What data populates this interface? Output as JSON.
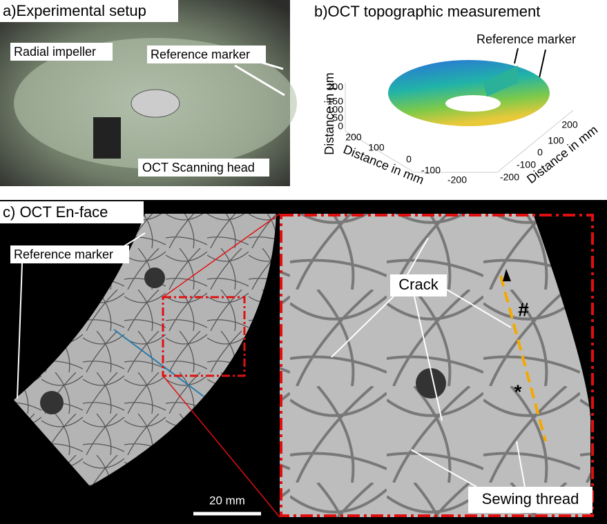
{
  "panel_a": {
    "title": "a)Experimental setup",
    "labels": [
      "Radial impeller",
      "Reference marker",
      "OCT Scanning head"
    ]
  },
  "panel_b": {
    "title": "b)OCT topographic measurement",
    "annotation": "Reference marker",
    "z_axis_label": "Distance in µm",
    "z_ticks": [
      "200",
      "150",
      "100",
      "50",
      "0"
    ],
    "x_axis_label": "Distance in mm",
    "x_ticks": [
      "200",
      "100",
      "0",
      "-100",
      "-200"
    ],
    "y_axis_label": "Distance in mm",
    "y_ticks": [
      "200",
      "100",
      "0",
      "-100",
      "-200"
    ]
  },
  "panel_c": {
    "title": "c) OCT En-face",
    "reference_label": "Reference marker",
    "scale_bar": "20 mm",
    "crack_label": "Crack",
    "hash_marker": "#",
    "star_marker": "*",
    "thread_label": "Sewing thread"
  }
}
